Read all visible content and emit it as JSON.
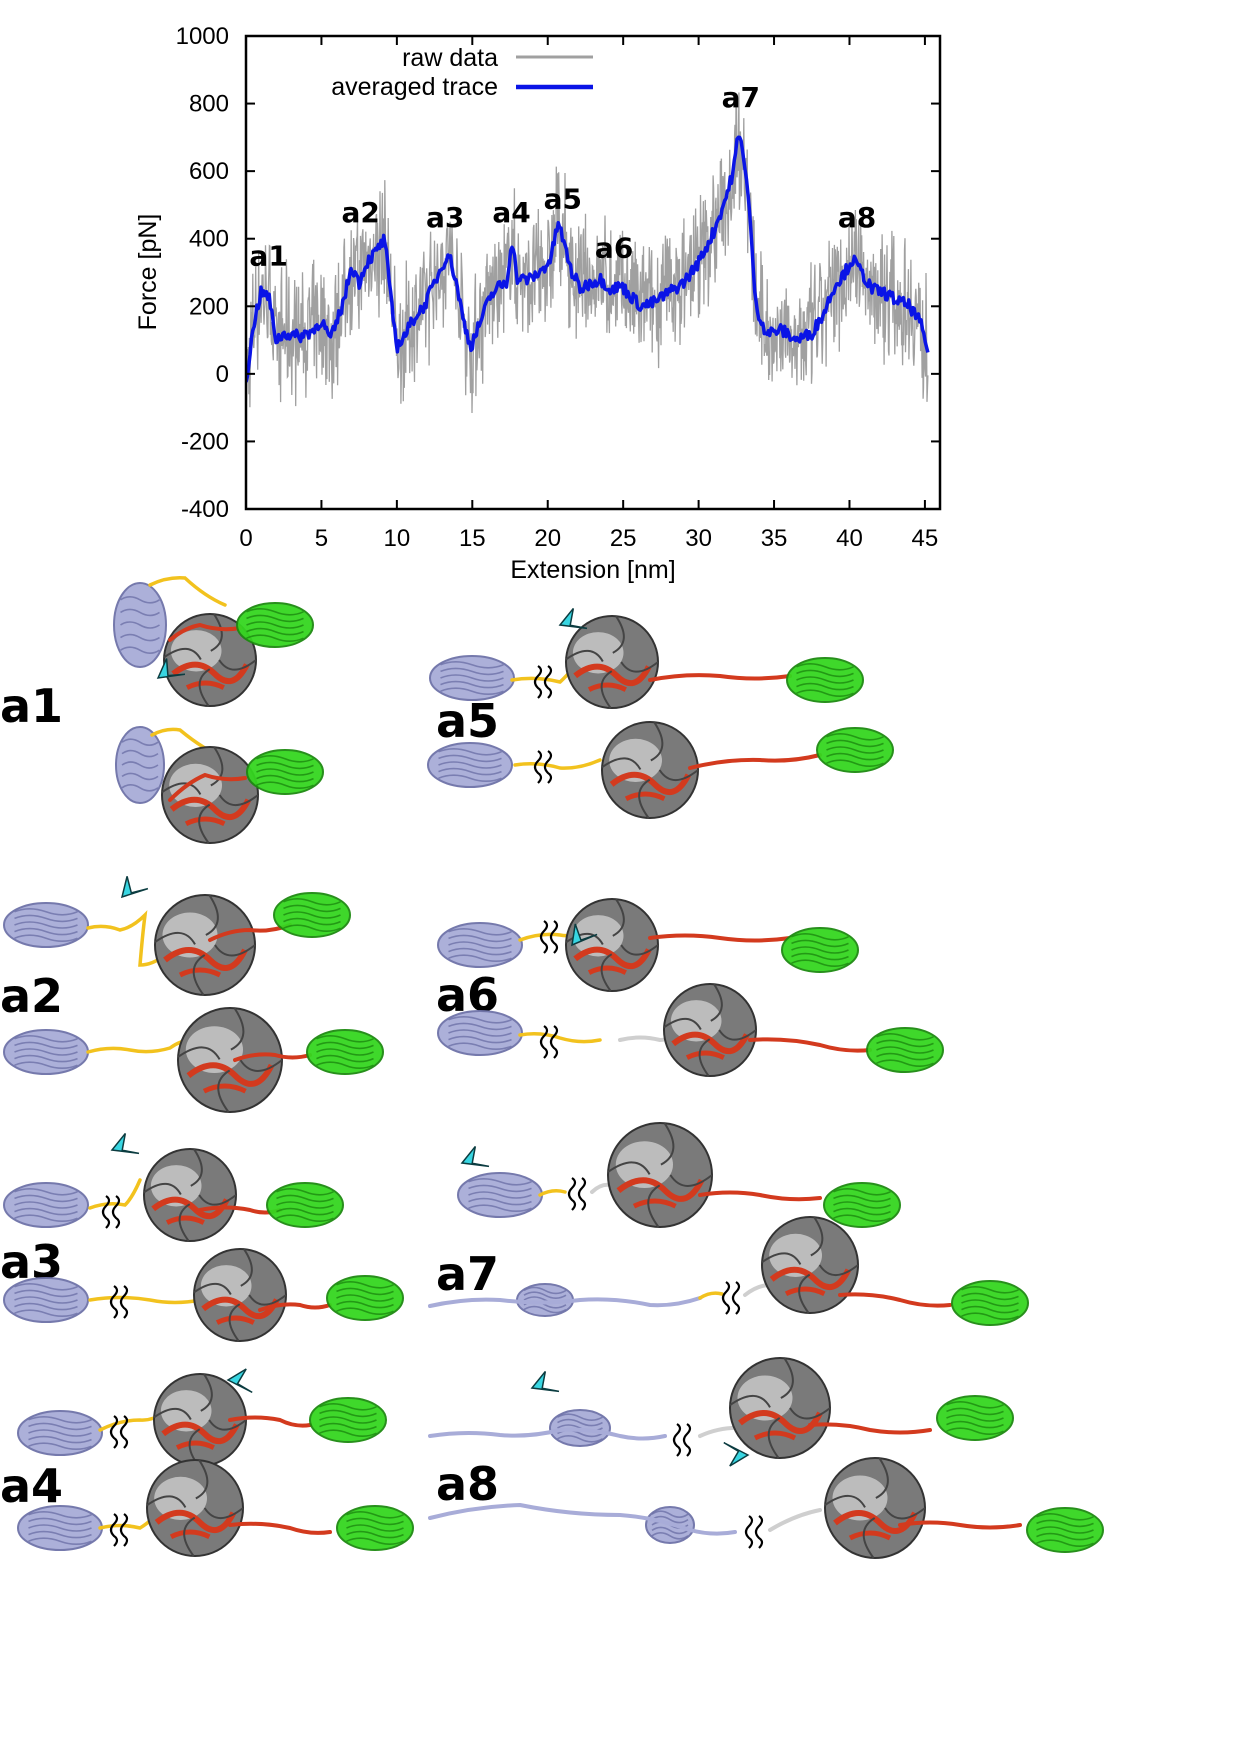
{
  "chart_data": {
    "type": "line",
    "xlabel": "Extension [nm]",
    "ylabel": "Force [pN]",
    "xlim": [
      0,
      46
    ],
    "ylim": [
      -400,
      1000
    ],
    "xticks": [
      0,
      5,
      10,
      15,
      20,
      25,
      30,
      35,
      40,
      45
    ],
    "yticks": [
      -400,
      -200,
      0,
      200,
      400,
      600,
      800,
      1000
    ],
    "grid": false,
    "legend_position": "top-center",
    "series": [
      {
        "name": "raw data",
        "color": "#a0a0a0",
        "noise_amplitude": 150,
        "note_peak_max": 940
      },
      {
        "name": "averaged trace",
        "color": "#0a14e6",
        "x": [
          0,
          0.6,
          1.0,
          1.5,
          2.0,
          2.6,
          3.5,
          4.5,
          5.0,
          5.6,
          6.0,
          6.5,
          7.0,
          7.5,
          8.0,
          8.6,
          9.2,
          9.6,
          10.0,
          10.6,
          11.2,
          11.8,
          12.4,
          13.0,
          13.4,
          13.9,
          14.4,
          14.9,
          15.5,
          16.2,
          16.8,
          17.3,
          17.6,
          18.0,
          18.8,
          19.5,
          20.2,
          20.7,
          21.1,
          21.6,
          22.2,
          22.8,
          23.5,
          24.2,
          24.9,
          25.5,
          26.2,
          27.0,
          28.0,
          29.0,
          30.0,
          31.0,
          31.8,
          32.3,
          32.6,
          32.9,
          33.3,
          33.8,
          34.5,
          35.5,
          36.5,
          37.5,
          38.3,
          39.0,
          39.7,
          40.2,
          40.8,
          41.5,
          42.3,
          43.0,
          44.0,
          44.7,
          45.2
        ],
        "y": [
          -20,
          170,
          240,
          230,
          100,
          120,
          110,
          130,
          160,
          100,
          150,
          220,
          320,
          270,
          330,
          360,
          400,
          220,
          80,
          120,
          170,
          200,
          260,
          320,
          360,
          280,
          160,
          80,
          150,
          230,
          260,
          270,
          400,
          280,
          280,
          300,
          340,
          450,
          380,
          300,
          250,
          270,
          280,
          250,
          260,
          230,
          200,
          210,
          240,
          270,
          330,
          420,
          520,
          600,
          700,
          680,
          520,
          200,
          120,
          130,
          100,
          120,
          180,
          260,
          300,
          340,
          300,
          250,
          240,
          220,
          200,
          150,
          70
        ]
      }
    ],
    "annotations": [
      {
        "text": "a1",
        "x": 1.5,
        "y": 320
      },
      {
        "text": "a2",
        "x": 7.6,
        "y": 450
      },
      {
        "text": "a3",
        "x": 13.2,
        "y": 435
      },
      {
        "text": "a4",
        "x": 17.6,
        "y": 450
      },
      {
        "text": "a5",
        "x": 21.0,
        "y": 490
      },
      {
        "text": "a6",
        "x": 24.4,
        "y": 345
      },
      {
        "text": "a7",
        "x": 32.8,
        "y": 790
      },
      {
        "text": "a8",
        "x": 40.5,
        "y": 435
      }
    ]
  },
  "panels": [
    {
      "label": "a1"
    },
    {
      "label": "a2"
    },
    {
      "label": "a3"
    },
    {
      "label": "a4"
    },
    {
      "label": "a5"
    },
    {
      "label": "a6"
    },
    {
      "label": "a7"
    },
    {
      "label": "a8"
    }
  ],
  "colors": {
    "domain_lavender": "#a8acd8",
    "linker_yellow": "#f2c21e",
    "core_gray": "#7a7a7a",
    "core_light": "#c8c8c8",
    "strand_red": "#d33a1e",
    "domain_green": "#35d620",
    "arrow_cyan": "#38d6e2"
  },
  "icons": {
    "arrowhead": "cyan-arrowhead-icon",
    "break": "double-squiggle-break-icon"
  }
}
